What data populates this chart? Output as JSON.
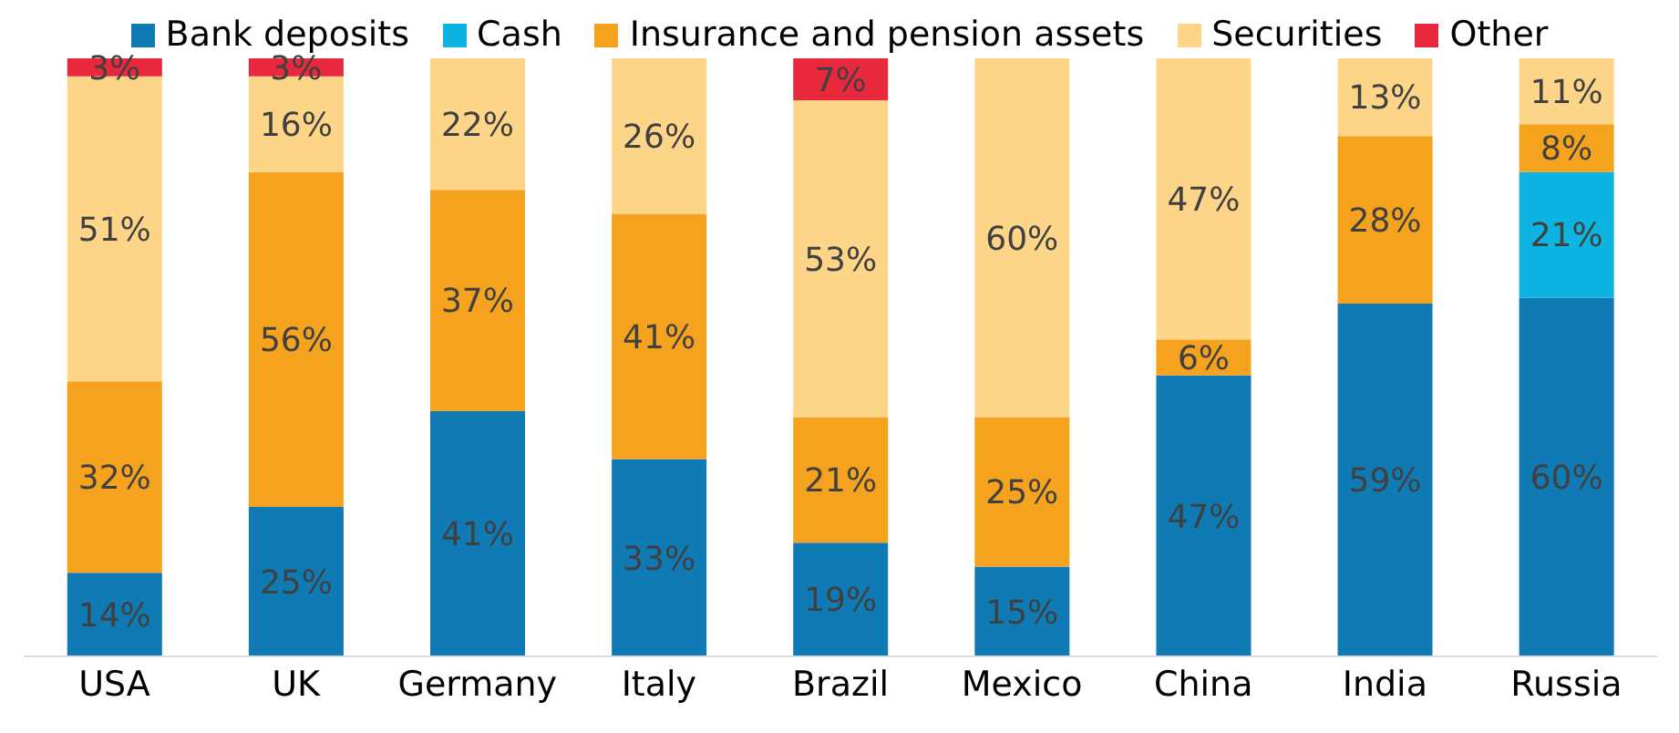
{
  "chart_data": {
    "type": "bar",
    "stacked": true,
    "categories": [
      "USA",
      "UK",
      "Germany",
      "Italy",
      "Brazil",
      "Mexico",
      "China",
      "India",
      "Russia"
    ],
    "series": [
      {
        "name": "Bank deposits",
        "color": "#0f7ab3",
        "values": [
          14,
          25,
          41,
          33,
          19,
          15,
          47,
          59,
          60
        ],
        "value_labels": [
          "14%",
          "25%",
          "41%",
          "33%",
          "19%",
          "15%",
          "47%",
          "59%",
          "60%"
        ]
      },
      {
        "name": "Cash",
        "color": "#0db4e2",
        "values": [
          null,
          null,
          null,
          null,
          null,
          null,
          null,
          null,
          21
        ],
        "value_labels": [
          null,
          null,
          null,
          null,
          null,
          null,
          null,
          null,
          "21%"
        ]
      },
      {
        "name": "Insurance and pension assets",
        "color": "#f5a31f",
        "values": [
          32,
          56,
          37,
          41,
          21,
          25,
          6,
          28,
          8
        ],
        "value_labels": [
          "32%",
          "56%",
          "37%",
          "41%",
          "21%",
          "25%",
          "6%",
          "28%",
          "8%"
        ]
      },
      {
        "name": "Securities",
        "color": "#fdd588",
        "values": [
          51,
          16,
          22,
          26,
          53,
          60,
          47,
          13,
          11
        ],
        "value_labels": [
          "51%",
          "16%",
          "22%",
          "26%",
          "53%",
          "60%",
          "47%",
          "13%",
          "11%"
        ]
      },
      {
        "name": "Other",
        "color": "#e8283c",
        "values": [
          3,
          3,
          null,
          null,
          7,
          null,
          null,
          null,
          null
        ],
        "value_labels": [
          "3%",
          "3%",
          null,
          null,
          "7%",
          null,
          null,
          null,
          null
        ]
      }
    ],
    "legend": "top",
    "tick_labels": "x"
  }
}
